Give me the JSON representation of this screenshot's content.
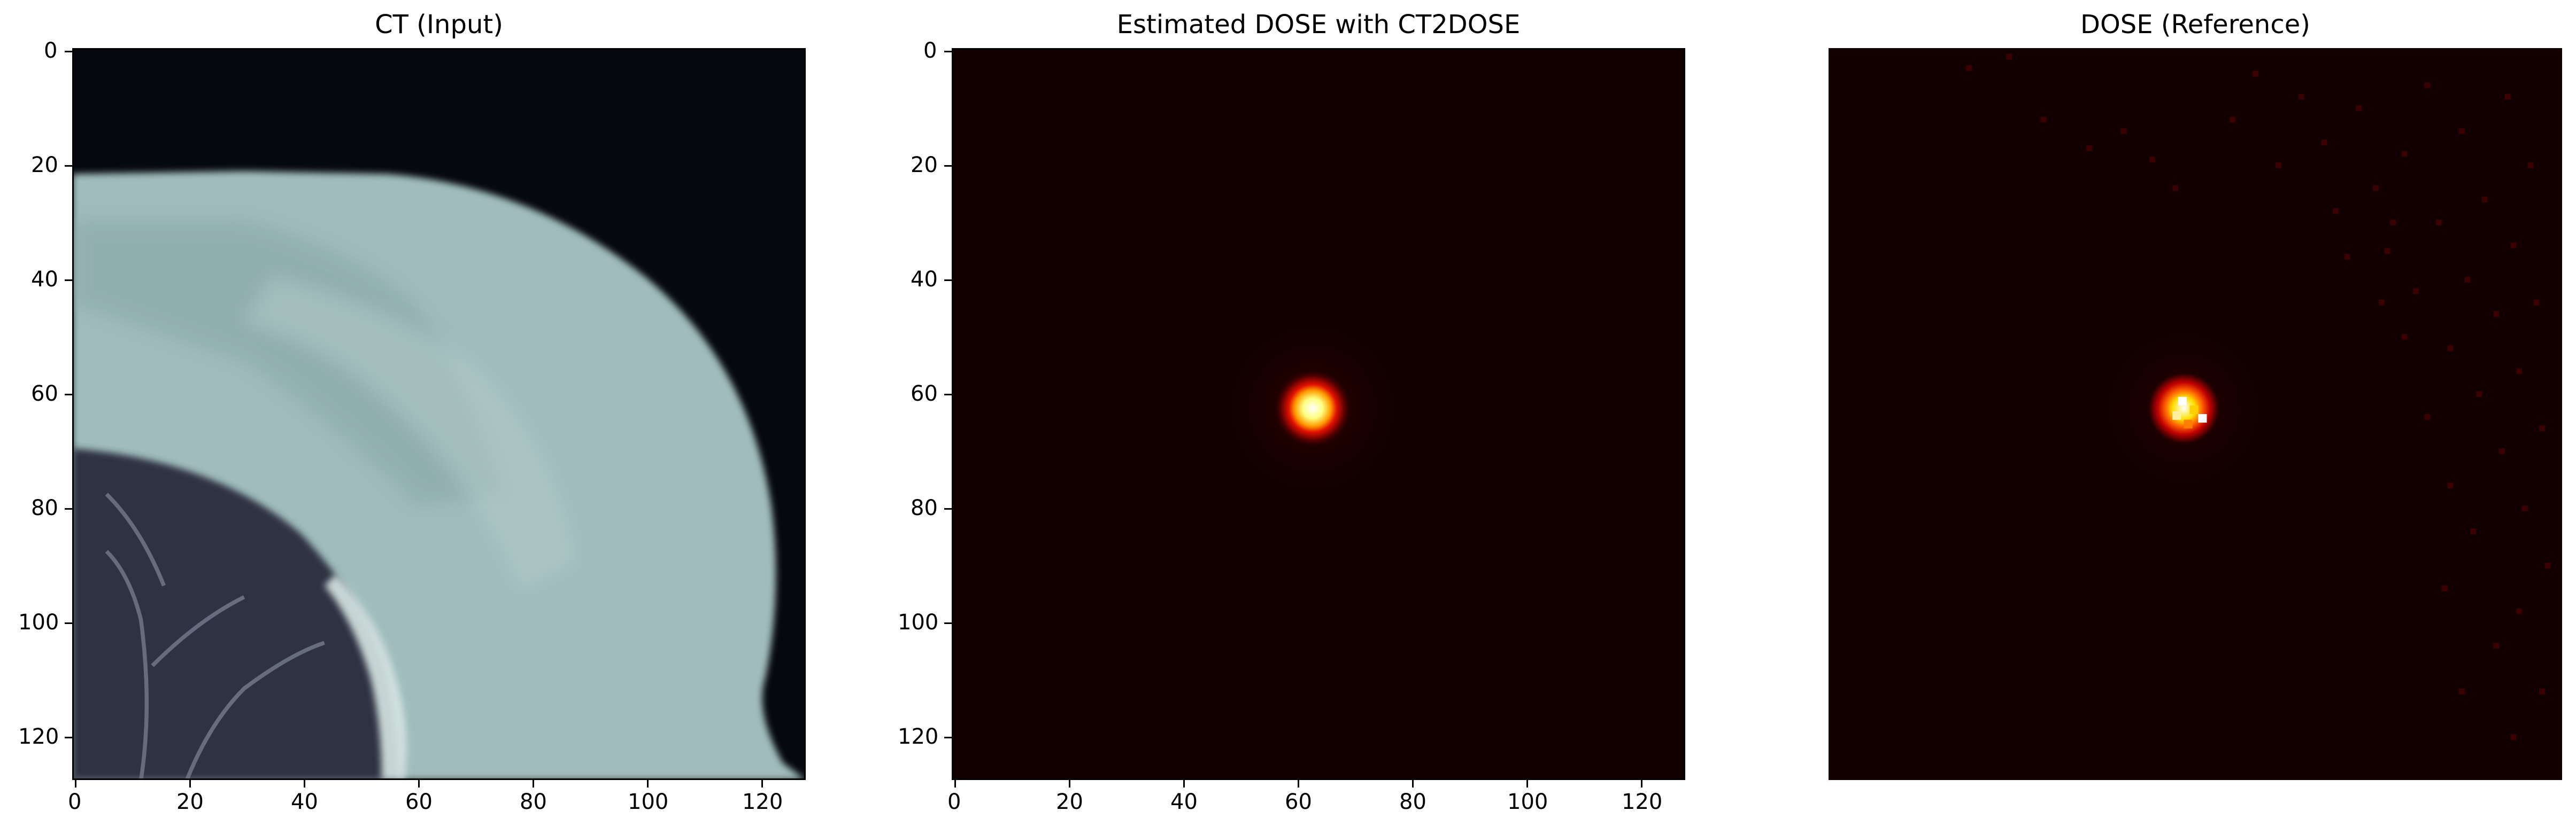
{
  "figure": {
    "colors": {
      "ct_body": "#a0bcbc",
      "ct_background": "#05080d",
      "ct_lung": "#2e3342",
      "dose_background": "#120000",
      "dose_core": "#fffff0"
    }
  },
  "chart_data": [
    {
      "type": "heatmap",
      "title": "CT (Input)",
      "colormap": "bone",
      "xlim": [
        0,
        127
      ],
      "ylim": [
        127,
        0
      ],
      "x_ticks": [
        0,
        20,
        40,
        60,
        80,
        100,
        120
      ],
      "y_ticks": [
        0,
        20,
        40,
        60,
        80,
        100,
        120
      ],
      "show_axes": true
    },
    {
      "type": "heatmap",
      "title": "Estimated DOSE with CT2DOSE",
      "colormap": "hot",
      "xlim": [
        0,
        127
      ],
      "ylim": [
        127,
        0
      ],
      "x_ticks": [
        0,
        20,
        40,
        60,
        80,
        100,
        120
      ],
      "y_ticks": [
        0,
        20,
        40,
        60,
        80,
        100,
        120
      ],
      "show_axes": true,
      "hotspot_center": [
        63,
        63
      ]
    },
    {
      "type": "heatmap",
      "title": "DOSE (Reference)",
      "colormap": "hot",
      "xlim": [
        0,
        127
      ],
      "ylim": [
        127,
        0
      ],
      "show_axes": false,
      "hotspot_center": [
        62,
        63
      ]
    }
  ]
}
